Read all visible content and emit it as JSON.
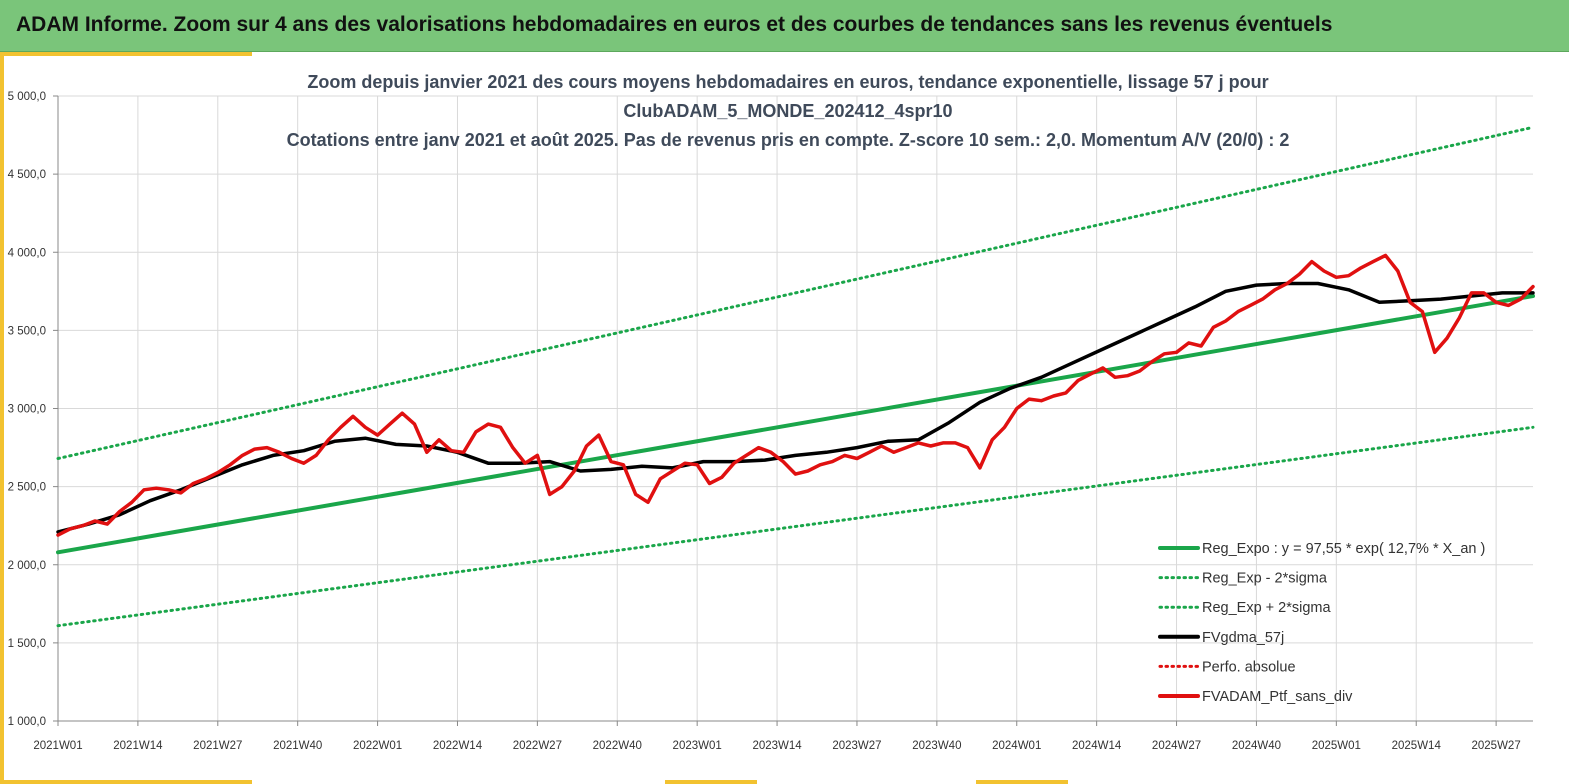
{
  "banner": {
    "title": "ADAM Informe. Zoom sur 4 ans des valorisations hebdomadaires en euros et des courbes de tendances sans les revenus éventuels"
  },
  "chart_data": {
    "type": "line",
    "title_lines": [
      "Zoom depuis janvier 2021 des cours moyens hebdomadaires  en euros, tendance exponentielle, lissage 57 j pour",
      "ClubADAM_5_MONDE_202412_4spr10",
      "Cotations  entre janv 2021 et août 2025. Pas de revenus pris en compte. Z-score 10 sem.: 2,0. Momentum A/V (20/0) : 2"
    ],
    "ylim": [
      1000,
      5000
    ],
    "y_ticks": [
      "1 000,0",
      "1 500,0",
      "2 000,0",
      "2 500,0",
      "3 000,0",
      "3 500,0",
      "4 000,0",
      "4 500,0",
      "5 000,0"
    ],
    "x_tick_labels": [
      "2021W01",
      "2021W14",
      "2021W27",
      "2021W40",
      "2022W01",
      "2022W14",
      "2022W27",
      "2022W40",
      "2023W01",
      "2023W14",
      "2023W27",
      "2023W40",
      "2024W01",
      "2024W14",
      "2024W27",
      "2024W40",
      "2025W01",
      "2025W14",
      "2025W27"
    ],
    "x_range_weeks": [
      0,
      240
    ],
    "grid": true,
    "legend_position": "bottom-right",
    "series": [
      {
        "name": "Reg_Expo : y = 97,55 * exp( 12,7% *  X_an )",
        "color": "#1aa64a",
        "style": "solid",
        "x": [
          0,
          240
        ],
        "values": [
          2080,
          3720
        ]
      },
      {
        "name": "Reg_Exp - 2*sigma",
        "color": "#1aa64a",
        "style": "dotted",
        "x": [
          0,
          240
        ],
        "values": [
          1610,
          2880
        ]
      },
      {
        "name": "Reg_Exp + 2*sigma",
        "color": "#1aa64a",
        "style": "dotted",
        "x": [
          0,
          240
        ],
        "values": [
          2680,
          4800
        ]
      },
      {
        "name": "FVgdma_57j",
        "color": "#000000",
        "style": "solid",
        "x": [
          0,
          5,
          10,
          15,
          20,
          25,
          30,
          35,
          40,
          45,
          50,
          55,
          60,
          65,
          70,
          75,
          80,
          85,
          90,
          95,
          100,
          105,
          110,
          115,
          120,
          125,
          130,
          135,
          140,
          145,
          150,
          155,
          160,
          165,
          170,
          175,
          180,
          185,
          190,
          195,
          200,
          205,
          210,
          215,
          220,
          225,
          230,
          235,
          240
        ],
        "values": [
          2210,
          2260,
          2320,
          2410,
          2480,
          2560,
          2640,
          2700,
          2730,
          2790,
          2810,
          2770,
          2760,
          2720,
          2650,
          2650,
          2660,
          2600,
          2610,
          2630,
          2620,
          2660,
          2660,
          2670,
          2700,
          2720,
          2750,
          2790,
          2800,
          2910,
          3040,
          3130,
          3200,
          3290,
          3380,
          3470,
          3560,
          3650,
          3750,
          3790,
          3800,
          3800,
          3760,
          3680,
          3690,
          3700,
          3720,
          3740,
          3740
        ]
      },
      {
        "name": "Perfo. absolue",
        "color": "#e01010",
        "style": "dotted",
        "x": [],
        "values": []
      },
      {
        "name": "FVADAM_Ptf_sans_div",
        "color": "#e01010",
        "style": "solid",
        "x": [
          0,
          2,
          4,
          6,
          8,
          10,
          12,
          14,
          16,
          18,
          20,
          22,
          24,
          26,
          28,
          30,
          32,
          34,
          36,
          38,
          40,
          42,
          44,
          46,
          48,
          50,
          52,
          54,
          56,
          58,
          60,
          62,
          64,
          66,
          68,
          70,
          72,
          74,
          76,
          78,
          80,
          82,
          84,
          86,
          88,
          90,
          92,
          94,
          96,
          98,
          100,
          102,
          104,
          106,
          108,
          110,
          112,
          114,
          116,
          118,
          120,
          122,
          124,
          126,
          128,
          130,
          132,
          134,
          136,
          138,
          140,
          142,
          144,
          146,
          148,
          150,
          152,
          154,
          156,
          158,
          160,
          162,
          164,
          166,
          168,
          170,
          172,
          174,
          176,
          178,
          180,
          182,
          184,
          186,
          188,
          190,
          192,
          194,
          196,
          198,
          200,
          202,
          204,
          206,
          208,
          210,
          212,
          214,
          216,
          218,
          220,
          222,
          224,
          226,
          228,
          230,
          232,
          234,
          236,
          238,
          240
        ],
        "values": [
          2190,
          2230,
          2250,
          2280,
          2260,
          2340,
          2400,
          2480,
          2490,
          2480,
          2460,
          2520,
          2550,
          2590,
          2640,
          2700,
          2740,
          2750,
          2720,
          2680,
          2650,
          2700,
          2800,
          2880,
          2950,
          2880,
          2830,
          2900,
          2970,
          2900,
          2720,
          2800,
          2730,
          2720,
          2850,
          2900,
          2880,
          2750,
          2650,
          2700,
          2450,
          2500,
          2600,
          2760,
          2830,
          2660,
          2640,
          2450,
          2400,
          2550,
          2600,
          2650,
          2640,
          2520,
          2560,
          2650,
          2700,
          2750,
          2720,
          2660,
          2580,
          2600,
          2640,
          2660,
          2700,
          2680,
          2720,
          2760,
          2720,
          2750,
          2780,
          2760,
          2780,
          2780,
          2750,
          2620,
          2800,
          2880,
          3000,
          3060,
          3050,
          3080,
          3100,
          3180,
          3220,
          3260,
          3200,
          3210,
          3240,
          3300,
          3350,
          3360,
          3420,
          3400,
          3520,
          3560,
          3620,
          3660,
          3700,
          3760,
          3800,
          3860,
          3940,
          3880,
          3840,
          3850,
          3900,
          3940,
          3980,
          3880,
          3680,
          3620,
          3360,
          3450,
          3580,
          3740,
          3740,
          3680,
          3660,
          3700,
          3780
        ]
      }
    ]
  }
}
